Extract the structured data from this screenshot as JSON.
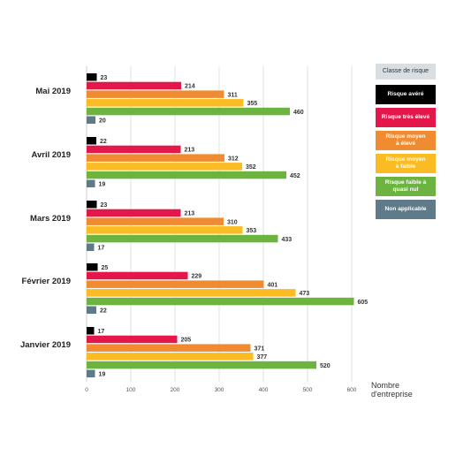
{
  "chart_data": {
    "type": "bar",
    "orientation": "horizontal",
    "categories": [
      "Mai 2019",
      "Avril  2019",
      "Mars 2019",
      "Février 2019",
      "Janvier 2019"
    ],
    "series": [
      {
        "name": "Risque avéré",
        "color": "#000000",
        "values": [
          23,
          22,
          23,
          25,
          17
        ]
      },
      {
        "name": "Risque très élevé",
        "color": "#e4174b",
        "values": [
          214,
          213,
          213,
          229,
          205
        ]
      },
      {
        "name": "Risque moyen à élevé",
        "color": "#f08b32",
        "values": [
          311,
          312,
          310,
          401,
          371
        ]
      },
      {
        "name": "Risque moyen à faible",
        "color": "#fbbb22",
        "values": [
          355,
          352,
          353,
          473,
          377
        ]
      },
      {
        "name": "Risque faible à quasi nul",
        "color": "#6db33f",
        "values": [
          460,
          452,
          433,
          605,
          520
        ]
      },
      {
        "name": "Non applicable",
        "color": "#5f7b8a",
        "values": [
          20,
          19,
          17,
          22,
          19
        ]
      }
    ],
    "xlim": [
      0,
      600
    ],
    "xticks": [
      "0",
      "100",
      "200",
      "300",
      "400",
      "500",
      "600"
    ],
    "xlabel": "Nombre\nd'entreprise",
    "grid": true,
    "legend_title": "Classe de risque",
    "legend_labels": [
      "Risque avéré",
      "Risque très élevé",
      "Risque moyen\nà élevé",
      "Risque moyen\nà faible",
      "Risque faible à\nquasi nul",
      "Non applicable"
    ],
    "legend_placement": "right"
  }
}
